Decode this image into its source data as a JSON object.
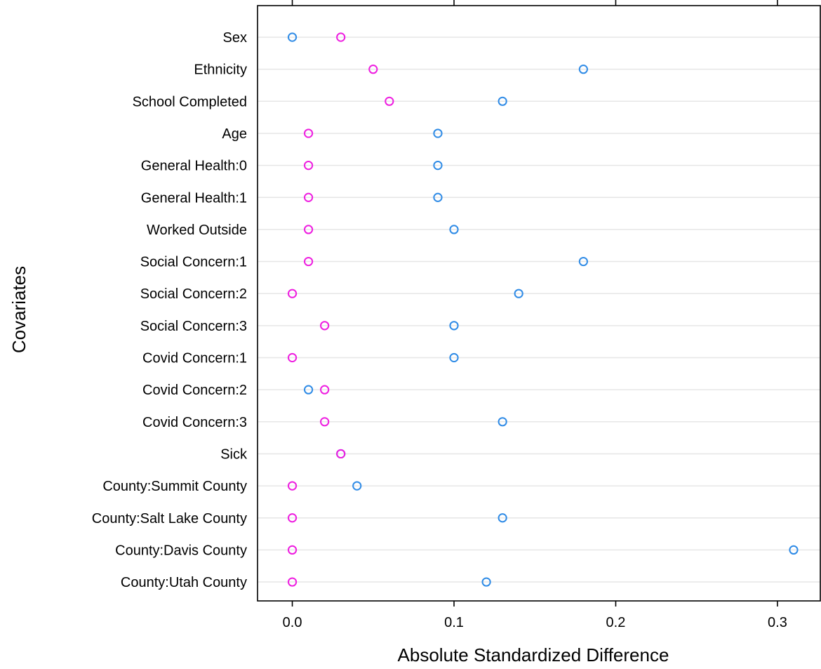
{
  "chart_data": {
    "type": "scatter",
    "title": "",
    "xlabel": "Absolute Standardized Difference",
    "ylabel": "Covariates",
    "xlim": [
      -0.0215,
      0.3265
    ],
    "xticks": [
      "0.0",
      "0.1",
      "0.2",
      "0.3"
    ],
    "xtick_values": [
      0.0,
      0.1,
      0.2,
      0.3
    ],
    "grid": "horizontal",
    "legend": "none",
    "categories": [
      "Sex",
      "Ethnicity",
      "School Completed",
      "Age",
      "General Health:0",
      "General Health:1",
      "Worked Outside",
      "Social Concern:1",
      "Social Concern:2",
      "Social Concern:3",
      "Covid Concern:1",
      "Covid Concern:2",
      "Covid Concern:3",
      "Sick",
      "County:Summit County",
      "County:Salt Lake County",
      "County:Davis County",
      "County:Utah County"
    ],
    "series": [
      {
        "color": "#2f8be6",
        "values": [
          0.0,
          0.18,
          0.13,
          0.09,
          0.09,
          0.09,
          0.1,
          0.18,
          0.14,
          0.1,
          0.1,
          0.01,
          0.13,
          0.03,
          0.04,
          0.13,
          0.31,
          0.12
        ]
      },
      {
        "color": "#ee1ee0",
        "values": [
          0.03,
          0.05,
          0.06,
          0.01,
          0.01,
          0.01,
          0.01,
          0.01,
          0.0,
          0.02,
          0.0,
          0.02,
          0.02,
          0.03,
          0.0,
          0.0,
          0.0,
          0.0
        ]
      }
    ]
  }
}
